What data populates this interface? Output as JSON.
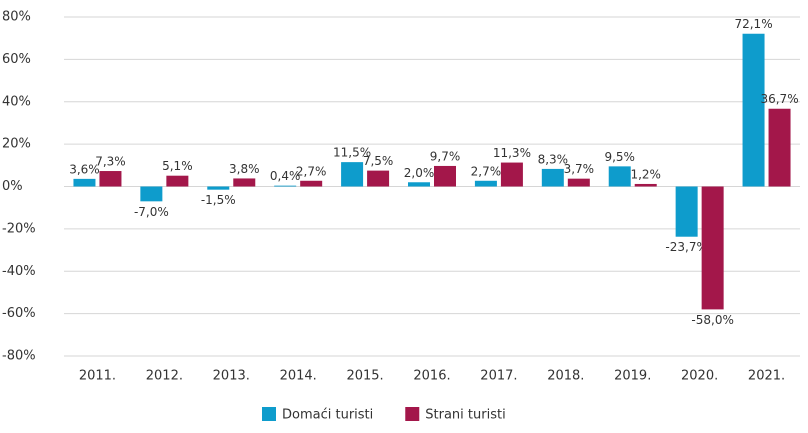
{
  "chart_data": {
    "type": "bar",
    "categories": [
      "2011.",
      "2012.",
      "2013.",
      "2014.",
      "2015.",
      "2016.",
      "2017.",
      "2018.",
      "2019.",
      "2020.",
      "2021."
    ],
    "series": [
      {
        "name": "Domaći turisti",
        "color": "#0e9ccc",
        "values": [
          3.6,
          -7.0,
          -1.5,
          0.4,
          11.5,
          2.0,
          2.7,
          8.3,
          9.5,
          -23.7,
          72.1
        ],
        "value_labels": [
          "3,6%",
          "-7,0%",
          "-1,5%",
          "0,4%",
          "11,5%",
          "2,0%",
          "2,7%",
          "8,3%",
          "9,5%",
          "-23,7%",
          "72,1%"
        ]
      },
      {
        "name": "Strani turisti",
        "color": "#a3174a",
        "values": [
          7.3,
          5.1,
          3.8,
          2.7,
          7.5,
          9.7,
          11.3,
          3.7,
          1.2,
          -58.0,
          36.7
        ],
        "value_labels": [
          "7,3%",
          "5,1%",
          "3,8%",
          "2,7%",
          "7,5%",
          "9,7%",
          "11,3%",
          "3,7%",
          "1,2%",
          "-58,0%",
          "36,7%"
        ]
      }
    ],
    "ylim": [
      -80,
      80
    ],
    "yticks": [
      {
        "value": -80,
        "label": "-80%"
      },
      {
        "value": -60,
        "label": "-60%"
      },
      {
        "value": -40,
        "label": "-40%"
      },
      {
        "value": -20,
        "label": "-20%"
      },
      {
        "value": 0,
        "label": "0%"
      },
      {
        "value": 20,
        "label": "20%"
      },
      {
        "value": 40,
        "label": "40%"
      },
      {
        "value": 60,
        "label": "60%"
      },
      {
        "value": 80,
        "label": "80%"
      }
    ],
    "grid": true,
    "legend": "bottom"
  }
}
